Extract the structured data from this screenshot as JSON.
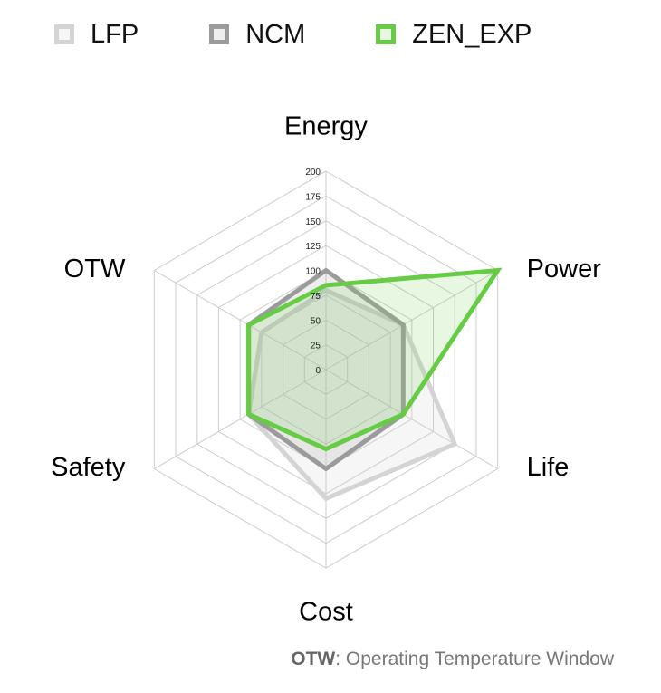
{
  "chart_data": {
    "type": "radar",
    "axes": [
      "Energy",
      "Power",
      "Life",
      "Cost",
      "Safety",
      "OTW"
    ],
    "rmin": 0,
    "rmax": 200,
    "ticks": [
      0,
      25,
      50,
      75,
      100,
      125,
      150,
      175,
      200
    ],
    "series": [
      {
        "name": "LFP",
        "values": [
          80,
          90,
          150,
          130,
          90,
          75
        ],
        "color": "#d4d4d4",
        "fill": "rgba(215,215,215,0.22)"
      },
      {
        "name": "NCM",
        "values": [
          100,
          90,
          90,
          100,
          90,
          90
        ],
        "color": "#9b9b9b",
        "fill": "rgba(160,160,160,0.18)"
      },
      {
        "name": "ZEN_EXP",
        "values": [
          85,
          200,
          90,
          80,
          90,
          90
        ],
        "color": "#66cc44",
        "fill": "rgba(120,210,90,0.18)"
      }
    ]
  },
  "footnote": {
    "abbr": "OTW",
    "text": ": Operating Temperature Window"
  }
}
